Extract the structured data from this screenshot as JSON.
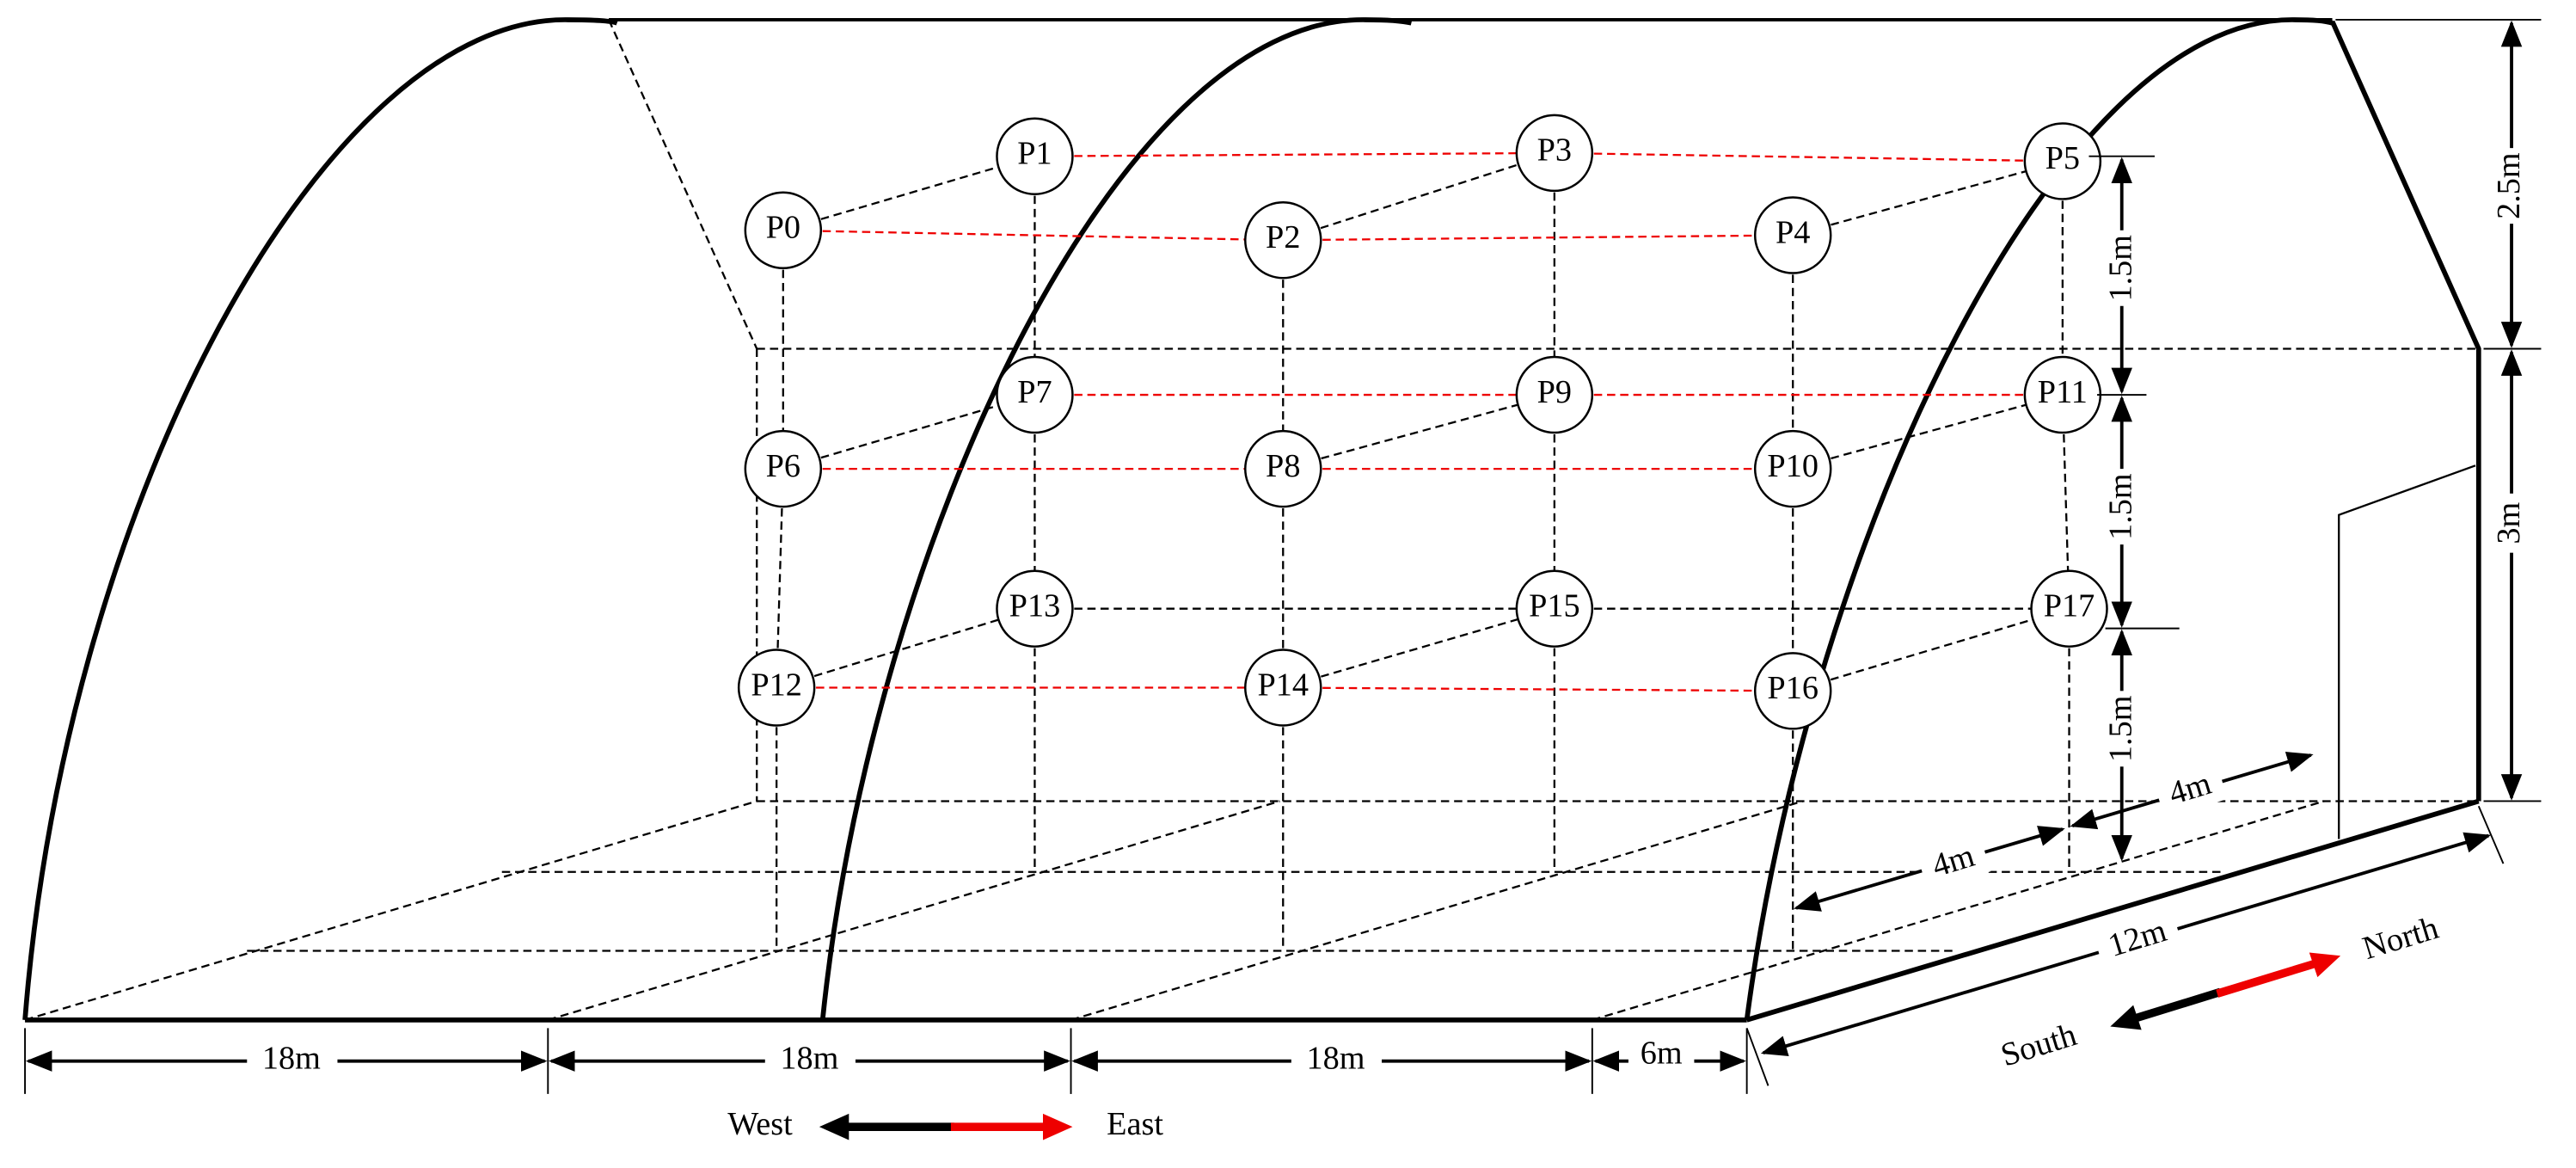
{
  "nodes": [
    {
      "label": "P0"
    },
    {
      "label": "P1"
    },
    {
      "label": "P2"
    },
    {
      "label": "P3"
    },
    {
      "label": "P4"
    },
    {
      "label": "P5"
    },
    {
      "label": "P6"
    },
    {
      "label": "P7"
    },
    {
      "label": "P8"
    },
    {
      "label": "P9"
    },
    {
      "label": "P10"
    },
    {
      "label": "P11"
    },
    {
      "label": "P12"
    },
    {
      "label": "P13"
    },
    {
      "label": "P14"
    },
    {
      "label": "P15"
    },
    {
      "label": "P16"
    },
    {
      "label": "P17"
    }
  ],
  "dimensions": {
    "bottom": [
      "18m",
      "18m",
      "18m",
      "6m"
    ],
    "depth": "12m",
    "height_upper": "2.5m",
    "height_lower": "3m",
    "spacing_vertical": [
      "1.5m",
      "1.5m",
      "1.5m"
    ],
    "spacing_horizontal": [
      "4m",
      "4m"
    ]
  },
  "directions": {
    "west": "West",
    "east": "East",
    "south": "South",
    "north": "North"
  }
}
